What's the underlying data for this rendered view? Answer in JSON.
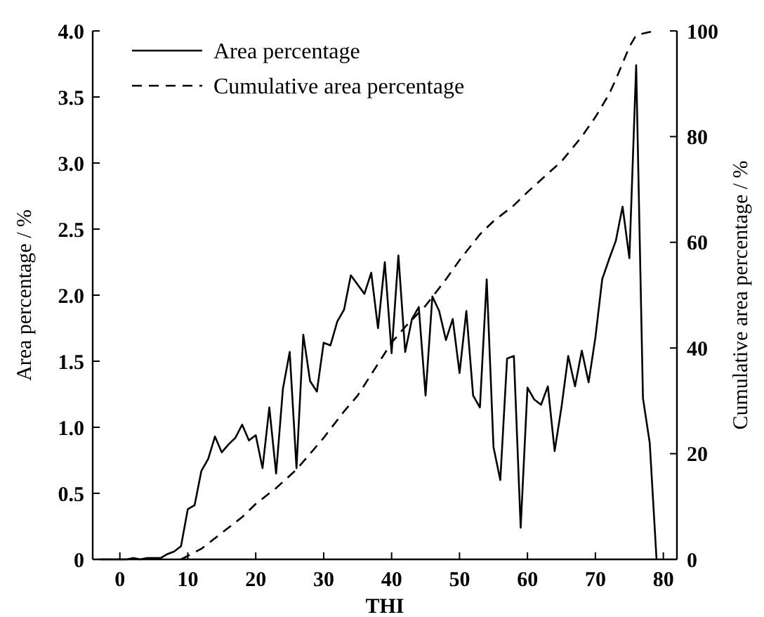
{
  "chart_data": {
    "type": "line",
    "xlabel": "THI",
    "ylabel": "Area percentage / %",
    "y2label": "Cumulative area percentage / %",
    "xlim": [
      -4,
      82
    ],
    "xticks": [
      0,
      10,
      20,
      30,
      40,
      50,
      60,
      70,
      80
    ],
    "ylim": [
      0,
      4
    ],
    "yticks": [
      0,
      {
        "value": 0.5,
        "label": "0.5"
      },
      {
        "value": 1,
        "label": "1.0"
      },
      {
        "value": 1.5,
        "label": "1.5"
      },
      {
        "value": 2,
        "label": "2.0"
      },
      {
        "value": 2.5,
        "label": "2.5"
      },
      {
        "value": 3,
        "label": "3.0"
      },
      {
        "value": 3.5,
        "label": "3.5"
      },
      {
        "value": 4,
        "label": "4.0"
      }
    ],
    "y2lim": [
      0,
      100
    ],
    "y2ticks": [
      0,
      20,
      40,
      60,
      80,
      100
    ],
    "legend": "top left",
    "grid": false,
    "series": [
      {
        "name": "Area percentage",
        "color": "#000000",
        "line_style": "solid",
        "x": [
          -3,
          -2,
          -1,
          0,
          1,
          2,
          3,
          4,
          5,
          6,
          7,
          8,
          9,
          10,
          11,
          12,
          13,
          14,
          15,
          16,
          17,
          18,
          19,
          20,
          21,
          22,
          23,
          24,
          25,
          26,
          27,
          28,
          29,
          30,
          31,
          32,
          33,
          34,
          35,
          36,
          37,
          38,
          39,
          40,
          41,
          42,
          43,
          44,
          45,
          46,
          47,
          48,
          49,
          50,
          51,
          52,
          53,
          54,
          55,
          56,
          57,
          58,
          59,
          60,
          61,
          62,
          63,
          64,
          65,
          66,
          67,
          68,
          69,
          70,
          71,
          72,
          73,
          74,
          75,
          76,
          77,
          78,
          79
        ],
        "values": [
          0,
          0,
          0,
          0,
          0,
          0.01,
          0,
          0.01,
          0.01,
          0.01,
          0.04,
          0.06,
          0.1,
          0.38,
          0.41,
          0.67,
          0.76,
          0.93,
          0.81,
          0.87,
          0.92,
          1.02,
          0.9,
          0.94,
          0.69,
          1.15,
          0.65,
          1.29,
          1.57,
          0.69,
          1.7,
          1.35,
          1.27,
          1.64,
          1.62,
          1.8,
          1.89,
          2.15,
          2.08,
          2.01,
          2.17,
          1.75,
          2.25,
          1.56,
          2.3,
          1.57,
          1.82,
          1.91,
          1.24,
          1.99,
          1.88,
          1.66,
          1.82,
          1.41,
          1.88,
          1.24,
          1.15,
          2.12,
          0.85,
          0.6,
          1.52,
          1.54,
          0.24,
          1.3,
          1.21,
          1.17,
          1.31,
          0.82,
          1.15,
          1.54,
          1.31,
          1.58,
          1.34,
          1.68,
          2.12,
          2.27,
          2.41,
          2.67,
          2.28,
          3.74,
          1.22,
          0.88,
          0
        ]
      },
      {
        "name": "Cumulative area percentage",
        "color": "#000000",
        "line_style": "dashed",
        "axis": "y2",
        "x": [
          9,
          12,
          15,
          18,
          20,
          23,
          26,
          30,
          33,
          35,
          38,
          40,
          42,
          45,
          48,
          50,
          53,
          55,
          58,
          60,
          63,
          65,
          68,
          70,
          72,
          73,
          75,
          76,
          78,
          79
        ],
        "values": [
          0,
          2,
          5,
          8,
          10.5,
          13.5,
          17,
          23,
          28,
          31,
          37,
          41,
          44,
          48,
          53,
          56.6,
          61.5,
          64,
          67,
          69.5,
          73,
          75.3,
          80,
          83.7,
          88,
          90.8,
          97,
          99.2,
          99.8,
          100
        ]
      }
    ]
  }
}
